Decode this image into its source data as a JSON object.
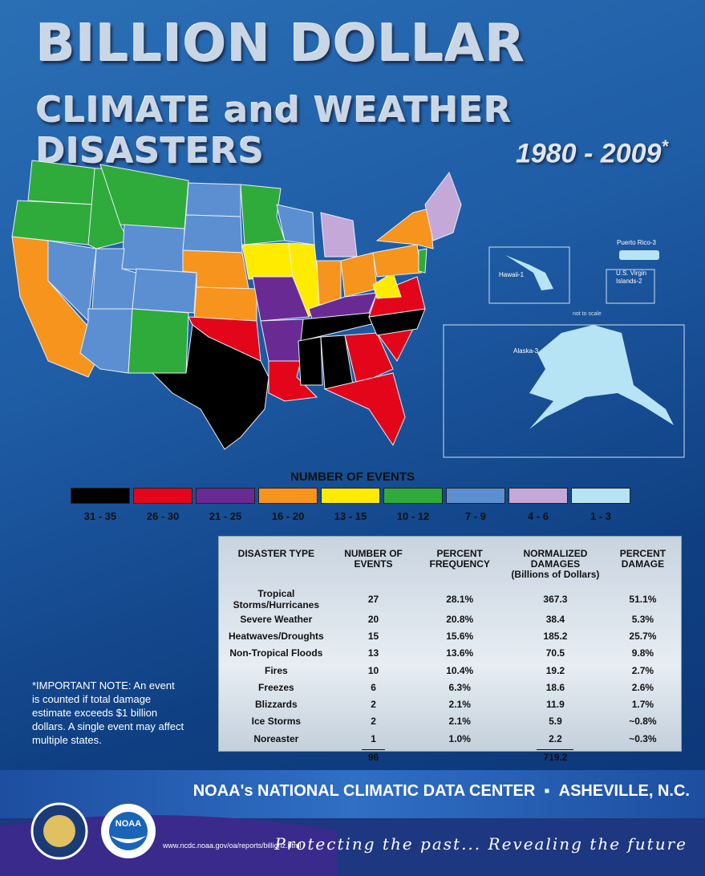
{
  "header": {
    "title_line1": "BILLION DOLLAR",
    "title_line2": "CLIMATE and WEATHER DISASTERS",
    "years": "1980 - 2009",
    "years_mark": "*"
  },
  "map": {
    "puerto_rico": "Puerto Rico-3",
    "hawaii": "Hawaii-1",
    "virgin_islands": "U.S. Virgin Islands-2",
    "scale_note": "not to scale",
    "alaska": "Alaska-3"
  },
  "legend": {
    "title": "NUMBER OF EVENTS",
    "items": [
      {
        "label": "31 - 35",
        "color": "#000000"
      },
      {
        "label": "26 - 30",
        "color": "#e3061b"
      },
      {
        "label": "21 - 25",
        "color": "#6a2a93"
      },
      {
        "label": "16 - 20",
        "color": "#f7941d"
      },
      {
        "label": "13 - 15",
        "color": "#ffeb00"
      },
      {
        "label": "10 - 12",
        "color": "#2eab3b"
      },
      {
        "label": "7 - 9",
        "color": "#5b8fd1"
      },
      {
        "label": "4 - 6",
        "color": "#c4a8d8"
      },
      {
        "label": "1 - 3",
        "color": "#b6e4f4"
      }
    ]
  },
  "table": {
    "headers": [
      "DISASTER TYPE",
      "NUMBER OF EVENTS",
      "PERCENT FREQUENCY",
      "NORMALIZED DAMAGES",
      "PERCENT DAMAGE"
    ],
    "damages_unit": "(Billions of Dollars)",
    "rows": [
      [
        "Tropical Storms/Hurricanes",
        "27",
        "28.1%",
        "367.3",
        "51.1%"
      ],
      [
        "Severe Weather",
        "20",
        "20.8%",
        "38.4",
        "5.3%"
      ],
      [
        "Heatwaves/Droughts",
        "15",
        "15.6%",
        "185.2",
        "25.7%"
      ],
      [
        "Non-Tropical Floods",
        "13",
        "13.6%",
        "70.5",
        "9.8%"
      ],
      [
        "Fires",
        "10",
        "10.4%",
        "19.2",
        "2.7%"
      ],
      [
        "Freezes",
        "6",
        "6.3%",
        "18.6",
        "2.6%"
      ],
      [
        "Blizzards",
        "2",
        "2.1%",
        "11.9",
        "1.7%"
      ],
      [
        "Ice Storms",
        "2",
        "2.1%",
        "5.9",
        "~0.8%"
      ],
      [
        "Noreaster",
        "1",
        "1.0%",
        "2.2",
        "~0.3%"
      ]
    ],
    "total_events": "96",
    "total_damages": "719.2"
  },
  "note": "*IMPORTANT NOTE: An event is counted if total damage estimate exceeds $1 billion dollars.  A single event may affect multiple states.",
  "footer": {
    "center": "NOAA's NATIONAL CLIMATIC DATA CENTER",
    "separator": "▪",
    "city": "ASHEVILLE, N.C.",
    "url": "www.ncdc.noaa.gov/oa/reports/billionz.html",
    "tagline": "Protecting the past... Revealing the future",
    "noaa_logo": "NOAA"
  }
}
